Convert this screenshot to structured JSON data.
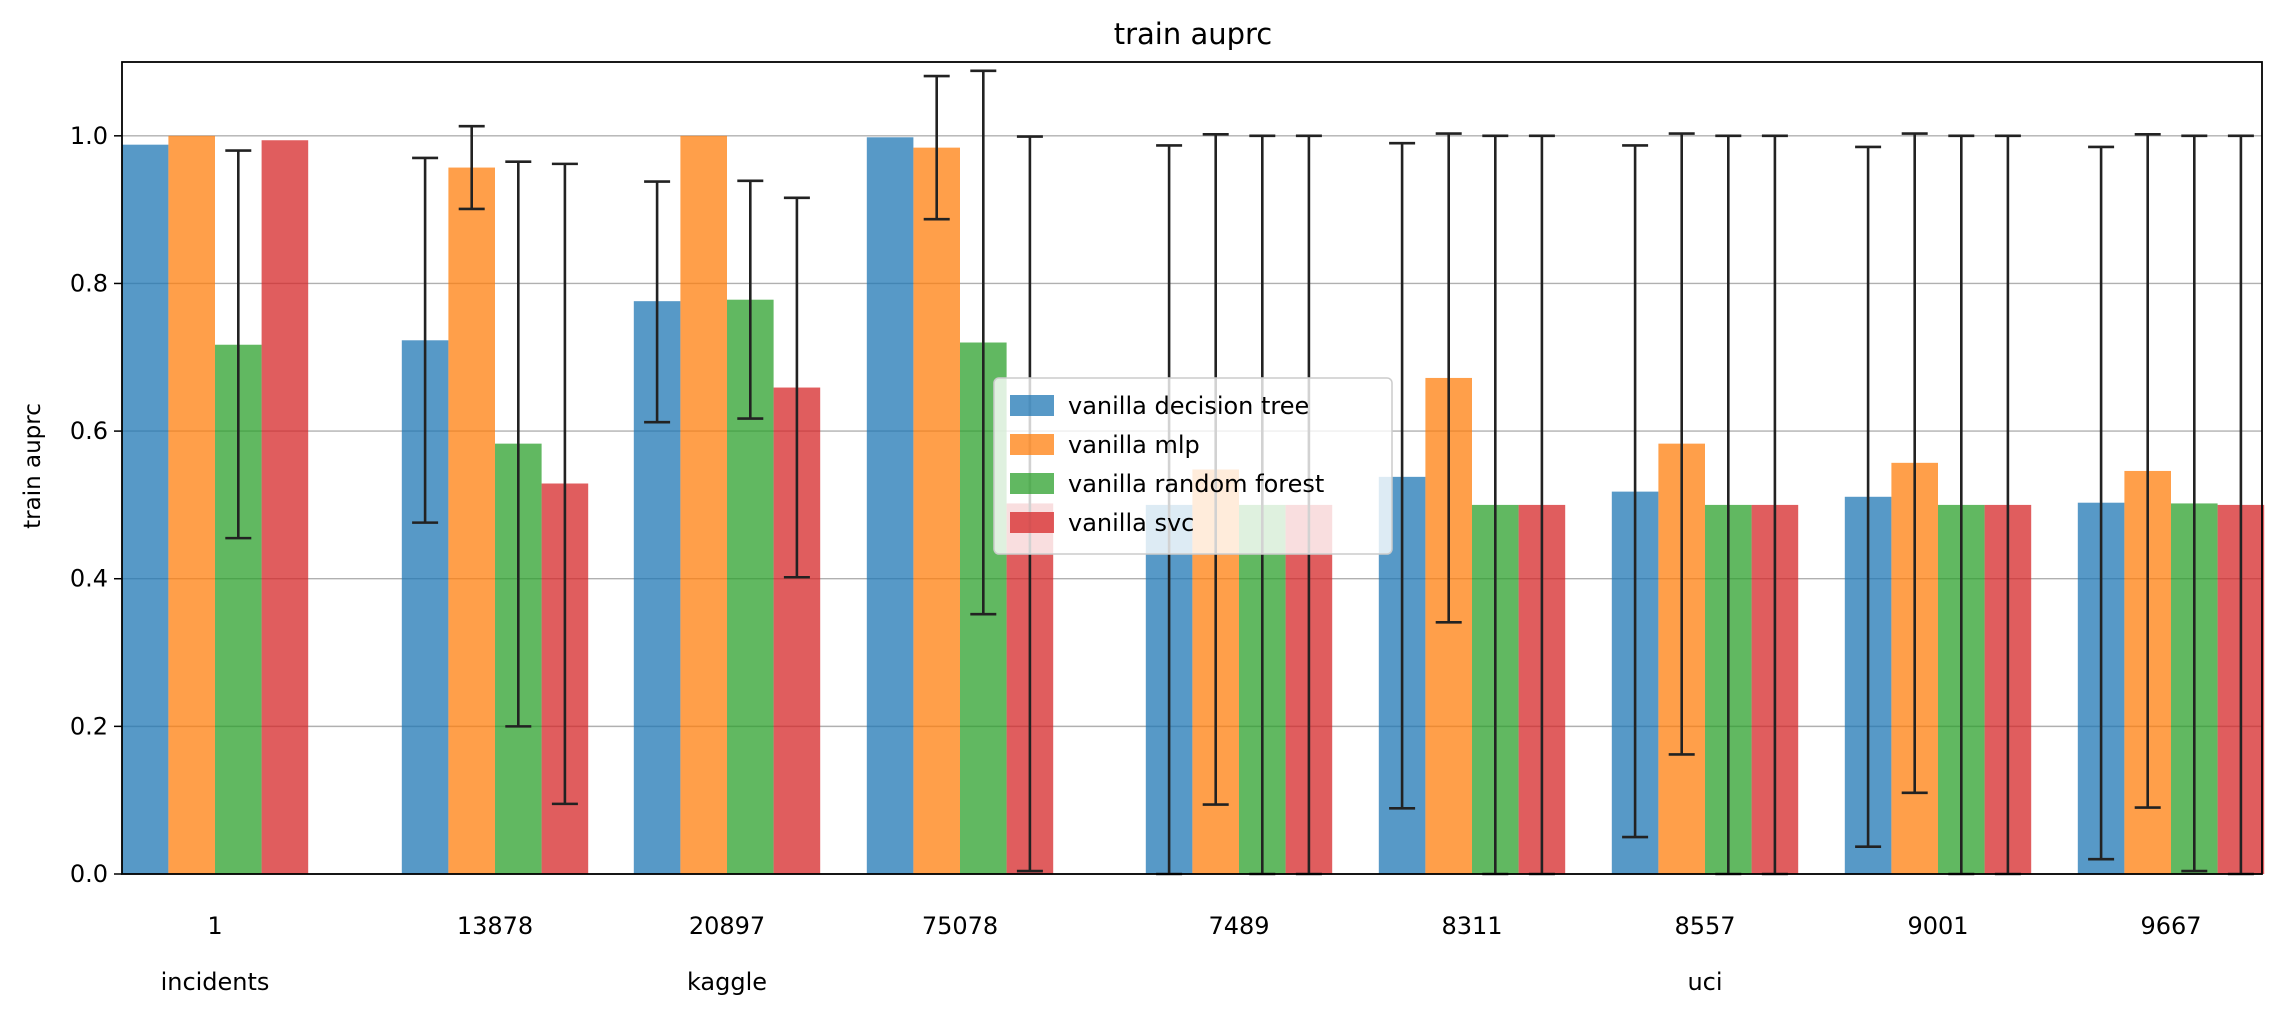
{
  "chart_data": {
    "type": "bar",
    "title": "train auprc",
    "xlabel": "",
    "ylabel": "train auprc",
    "ylim": [
      0,
      1.1
    ],
    "yticks": [
      "0.0",
      "0.2",
      "0.4",
      "0.6",
      "0.8",
      "1.0"
    ],
    "grid": "horizontal",
    "legend_position": "center",
    "categories": [
      "1",
      "13878",
      "20897",
      "75078",
      "7489",
      "8311",
      "8557",
      "9001",
      "9667"
    ],
    "category_groups": [
      {
        "label": "incidents",
        "categories": [
          "1"
        ]
      },
      {
        "label": "kaggle",
        "categories": [
          "13878",
          "20897",
          "75078"
        ]
      },
      {
        "label": "uci",
        "categories": [
          "7489",
          "8311",
          "8557",
          "9001",
          "9667"
        ]
      }
    ],
    "series": [
      {
        "name": "vanilla decision tree",
        "color": "#1f77b4",
        "values": [
          0.988,
          0.723,
          0.776,
          0.998,
          0.5,
          0.538,
          0.518,
          0.511,
          0.503
        ],
        "error_low": [
          null,
          0.476,
          0.612,
          null,
          0.0,
          0.089,
          0.05,
          0.037,
          0.02
        ],
        "error_high": [
          null,
          0.97,
          0.938,
          null,
          0.987,
          0.99,
          0.987,
          0.985,
          0.985
        ]
      },
      {
        "name": "vanilla mlp",
        "color": "#ff7f0e",
        "values": [
          1.0,
          0.957,
          1.0,
          0.984,
          0.548,
          0.672,
          0.583,
          0.557,
          0.546
        ],
        "error_low": [
          null,
          0.901,
          null,
          0.887,
          0.094,
          0.341,
          0.162,
          0.11,
          0.09
        ],
        "error_high": [
          null,
          1.013,
          null,
          1.081,
          1.002,
          1.003,
          1.003,
          1.003,
          1.002
        ]
      },
      {
        "name": "vanilla random forest",
        "color": "#2ca02c",
        "values": [
          0.717,
          0.583,
          0.778,
          0.72,
          0.5,
          0.5,
          0.5,
          0.5,
          0.502
        ],
        "error_low": [
          0.455,
          0.2,
          0.617,
          0.352,
          0.0,
          0.0,
          0.0,
          0.0,
          0.004
        ],
        "error_high": [
          0.98,
          0.965,
          0.939,
          1.088,
          1.0,
          1.0,
          1.0,
          1.0,
          1.0
        ]
      },
      {
        "name": "vanilla svc",
        "color": "#d62728",
        "values": [
          0.994,
          0.529,
          0.659,
          0.502,
          0.5,
          0.5,
          0.5,
          0.5,
          0.5
        ],
        "error_low": [
          null,
          0.095,
          0.402,
          0.004,
          0.0,
          0.0,
          0.0,
          0.0,
          0.0
        ],
        "error_high": [
          null,
          0.962,
          0.916,
          0.999,
          1.0,
          1.0,
          1.0,
          1.0,
          1.0
        ]
      }
    ]
  }
}
